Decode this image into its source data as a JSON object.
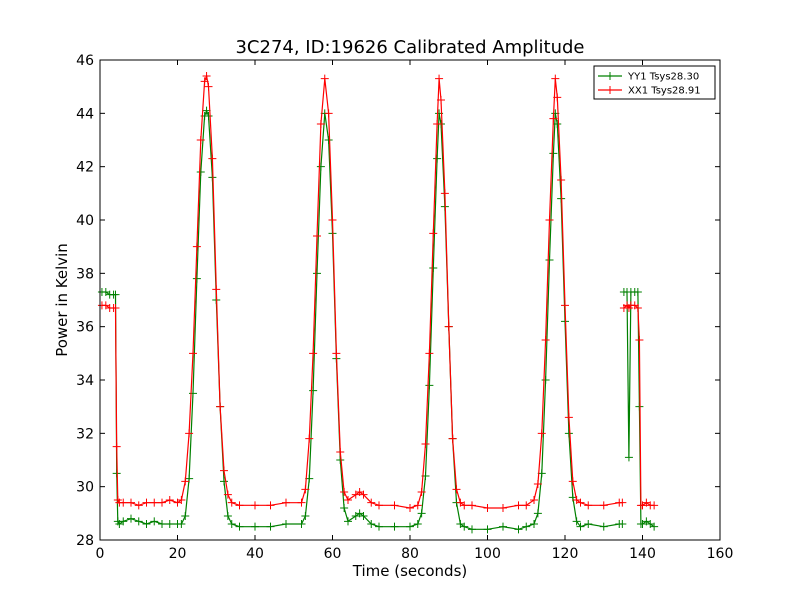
{
  "chart_data": {
    "type": "line",
    "title": "3C274, ID:19626 Calibrated Amplitude",
    "xlabel": "Time (seconds)",
    "ylabel": "Power in Kelvin",
    "xlim": [
      0,
      160
    ],
    "ylim": [
      28,
      46
    ],
    "xticks": [
      0,
      20,
      40,
      60,
      80,
      100,
      120,
      140,
      160
    ],
    "yticks": [
      28,
      30,
      32,
      34,
      36,
      38,
      40,
      42,
      44,
      46
    ],
    "grid": false,
    "legend_position": "top-right",
    "marker": "plus",
    "series": [
      {
        "name": "YY1 Tsys28.30",
        "color": "#008000",
        "segments": [
          {
            "x": [
              0.5,
              1.5,
              2.5,
              3.5,
              4.0,
              4.3,
              4.6,
              5,
              6,
              8,
              10,
              12,
              14,
              16,
              18,
              20,
              21,
              22,
              23,
              24,
              25,
              26,
              27,
              27.5,
              28,
              29,
              30,
              31,
              32,
              33,
              34,
              36,
              40,
              44,
              48,
              52,
              53,
              54,
              55,
              56,
              57,
              58,
              59,
              60,
              61,
              62,
              63,
              64,
              66,
              67,
              68,
              70,
              72,
              76,
              80,
              82,
              83,
              84,
              85,
              86,
              87,
              87.5,
              88,
              89,
              90,
              91,
              92,
              93,
              94,
              96,
              100,
              104,
              108,
              110,
              112,
              113,
              114,
              115,
              116,
              117,
              117.5,
              118,
              119,
              120,
              121,
              122,
              123,
              124,
              126,
              130,
              134,
              134.8
            ],
            "y": [
              37.3,
              37.3,
              37.2,
              37.2,
              37.2,
              30.5,
              28.7,
              28.6,
              28.7,
              28.8,
              28.7,
              28.6,
              28.7,
              28.6,
              28.6,
              28.6,
              28.6,
              28.9,
              30.3,
              33.5,
              37.8,
              41.8,
              43.9,
              44.1,
              43.9,
              41.6,
              37.0,
              33.0,
              30.2,
              28.9,
              28.6,
              28.5,
              28.5,
              28.5,
              28.6,
              28.6,
              28.9,
              30.3,
              33.6,
              38.0,
              42.0,
              44.0,
              43.0,
              39.5,
              34.8,
              31.0,
              29.2,
              28.7,
              28.9,
              29.0,
              28.9,
              28.6,
              28.5,
              28.5,
              28.5,
              28.6,
              29.0,
              30.4,
              33.8,
              38.2,
              42.3,
              44.0,
              43.6,
              40.5,
              36.0,
              31.8,
              29.4,
              28.6,
              28.5,
              28.4,
              28.4,
              28.5,
              28.4,
              28.5,
              28.6,
              29.0,
              30.5,
              34.0,
              38.5,
              42.5,
              44.0,
              43.6,
              40.8,
              36.2,
              32.0,
              29.6,
              28.7,
              28.5,
              28.6,
              28.5,
              28.6,
              28.6
            ]
          },
          {
            "x": [
              135.2,
              136,
              136.5,
              137,
              138,
              138.8,
              139.2,
              139.6,
              140,
              141,
              142,
              143
            ],
            "y": [
              37.3,
              37.3,
              31.1,
              37.3,
              37.3,
              37.3,
              33.0,
              28.6,
              28.6,
              28.7,
              28.6,
              28.5
            ]
          }
        ]
      },
      {
        "name": "XX1 Tsys28.91",
        "color": "#ff0000",
        "segments": [
          {
            "x": [
              0.5,
              1.5,
              2.5,
              3.5,
              4.0,
              4.3,
              4.6,
              5,
              6,
              8,
              10,
              12,
              14,
              16,
              18,
              20,
              21,
              22,
              23,
              24,
              25,
              26,
              27,
              27.5,
              28,
              29,
              30,
              31,
              32,
              33,
              34,
              36,
              40,
              44,
              48,
              52,
              53,
              54,
              55,
              56,
              57,
              58,
              59,
              60,
              61,
              62,
              63,
              64,
              66,
              67,
              68,
              70,
              72,
              76,
              80,
              82,
              83,
              84,
              85,
              86,
              87,
              87.5,
              88,
              89,
              90,
              91,
              92,
              93,
              94,
              96,
              100,
              104,
              108,
              110,
              112,
              113,
              114,
              115,
              116,
              117,
              117.5,
              118,
              119,
              120,
              121,
              122,
              123,
              124,
              126,
              130,
              134,
              134.8
            ],
            "y": [
              36.8,
              36.8,
              36.7,
              36.7,
              36.7,
              31.5,
              29.5,
              29.4,
              29.4,
              29.4,
              29.3,
              29.4,
              29.4,
              29.4,
              29.5,
              29.4,
              29.5,
              30.2,
              32.0,
              35.0,
              39.0,
              43.0,
              45.2,
              45.4,
              45.0,
              42.3,
              37.4,
              33.0,
              30.6,
              29.7,
              29.4,
              29.3,
              29.3,
              29.3,
              29.4,
              29.4,
              29.9,
              31.8,
              35.0,
              39.4,
              43.6,
              45.3,
              44.0,
              40.0,
              35.0,
              31.3,
              29.8,
              29.5,
              29.7,
              29.8,
              29.7,
              29.4,
              29.3,
              29.3,
              29.2,
              29.3,
              29.8,
              31.6,
              35.0,
              39.5,
              43.6,
              45.3,
              44.5,
              41.0,
              36.0,
              31.8,
              29.9,
              29.4,
              29.3,
              29.3,
              29.2,
              29.2,
              29.3,
              29.3,
              29.5,
              30.1,
              32.0,
              35.5,
              40.0,
              43.8,
              45.3,
              44.6,
              41.5,
              36.8,
              32.6,
              30.2,
              29.5,
              29.4,
              29.3,
              29.3,
              29.4,
              29.4
            ]
          },
          {
            "x": [
              135.2,
              136,
              136.5,
              137,
              138,
              138.8,
              139.2,
              139.6,
              140,
              141,
              142,
              143
            ],
            "y": [
              36.7,
              36.8,
              36.7,
              36.8,
              36.8,
              36.7,
              35.5,
              29.3,
              29.3,
              29.4,
              29.3,
              29.3
            ]
          }
        ]
      }
    ]
  }
}
